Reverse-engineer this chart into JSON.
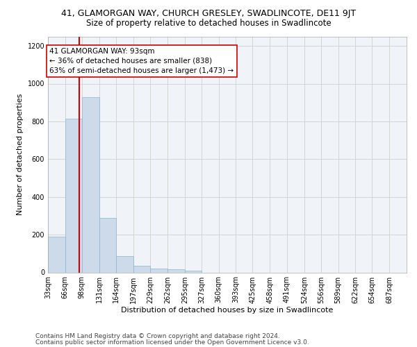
{
  "title": "41, GLAMORGAN WAY, CHURCH GRESLEY, SWADLINCOTE, DE11 9JT",
  "subtitle": "Size of property relative to detached houses in Swadlincote",
  "xlabel": "Distribution of detached houses by size in Swadlincote",
  "ylabel": "Number of detached properties",
  "bin_labels": [
    "33sqm",
    "66sqm",
    "98sqm",
    "131sqm",
    "164sqm",
    "197sqm",
    "229sqm",
    "262sqm",
    "295sqm",
    "327sqm",
    "360sqm",
    "393sqm",
    "425sqm",
    "458sqm",
    "491sqm",
    "524sqm",
    "556sqm",
    "589sqm",
    "622sqm",
    "654sqm",
    "687sqm"
  ],
  "bin_edges": [
    33,
    66,
    98,
    131,
    164,
    197,
    229,
    262,
    295,
    327,
    360,
    393,
    425,
    458,
    491,
    524,
    556,
    589,
    622,
    654,
    687
  ],
  "bar_values": [
    190,
    815,
    930,
    290,
    85,
    35,
    20,
    15,
    10,
    0,
    0,
    0,
    0,
    0,
    0,
    0,
    0,
    0,
    0,
    0
  ],
  "bar_color": "#ccdaea",
  "bar_edge_color": "#8ab4d0",
  "grid_color": "#d0d0d0",
  "red_line_x": 93,
  "annotation_box_text": "41 GLAMORGAN WAY: 93sqm\n← 36% of detached houses are smaller (838)\n63% of semi-detached houses are larger (1,473) →",
  "red_line_color": "#cc0000",
  "annotation_box_facecolor": "white",
  "annotation_box_edgecolor": "#cc0000",
  "ylim": [
    0,
    1250
  ],
  "yticks": [
    0,
    200,
    400,
    600,
    800,
    1000,
    1200
  ],
  "footer_line1": "Contains HM Land Registry data © Crown copyright and database right 2024.",
  "footer_line2": "Contains public sector information licensed under the Open Government Licence v3.0.",
  "title_fontsize": 9,
  "subtitle_fontsize": 8.5,
  "xlabel_fontsize": 8,
  "ylabel_fontsize": 8,
  "tick_fontsize": 7,
  "footer_fontsize": 6.5,
  "annotation_fontsize": 7.5
}
